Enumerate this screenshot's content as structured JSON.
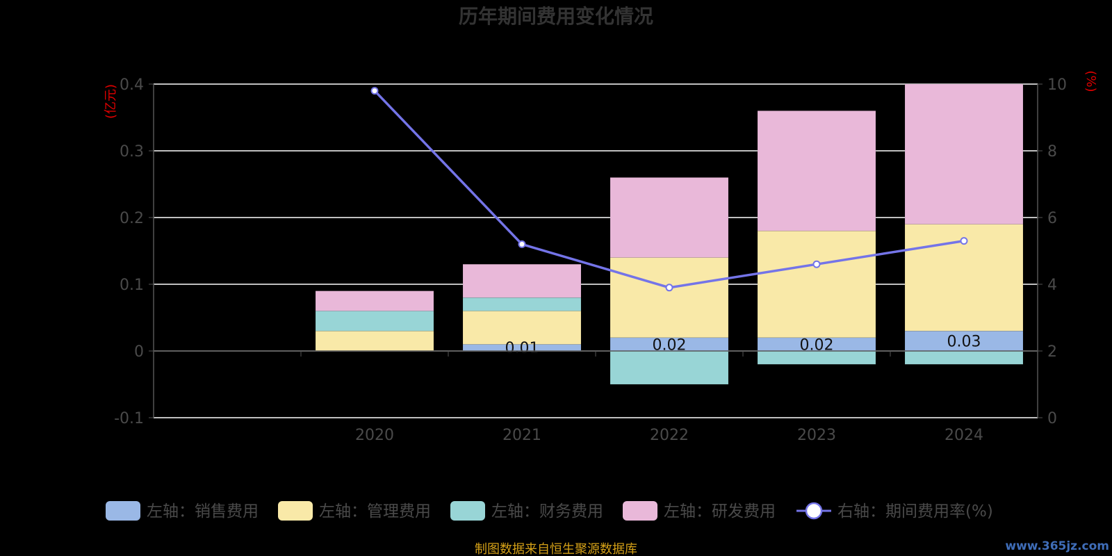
{
  "chart_data": {
    "type": "bar",
    "title": "历年期间费用变化情况",
    "categories": [
      "2020",
      "2021",
      "2022",
      "2023",
      "2024"
    ],
    "left_axis": {
      "unit": "(亿元)",
      "ylim": [
        -0.1,
        0.4
      ],
      "ticks": [
        "-0.1",
        "0",
        "0.1",
        "0.2",
        "0.3",
        "0.4"
      ]
    },
    "right_axis": {
      "unit": "(%)",
      "ylim": [
        0,
        10
      ],
      "ticks": [
        "0",
        "2",
        "4",
        "6",
        "8",
        "10"
      ]
    },
    "series": [
      {
        "name": "左轴：销售费用",
        "kind": "bar",
        "color": "#9ab8e6",
        "values": [
          0.0,
          0.01,
          0.02,
          0.02,
          0.03
        ],
        "labels": [
          "",
          "0.01",
          "0.02",
          "0.02",
          "0.03"
        ]
      },
      {
        "name": "左轴：管理费用",
        "kind": "bar",
        "color": "#f9e9a8",
        "values": [
          0.03,
          0.05,
          0.12,
          0.16,
          0.16
        ]
      },
      {
        "name": "左轴：财务费用",
        "kind": "bar",
        "color": "#98d5d6",
        "values": [
          0.03,
          0.02,
          -0.05,
          -0.02,
          -0.02
        ]
      },
      {
        "name": "左轴：研发费用",
        "kind": "bar",
        "color": "#e9b8d9",
        "values": [
          0.03,
          0.05,
          0.12,
          0.18,
          0.21
        ]
      },
      {
        "name": "右轴：期间费用率(%)",
        "kind": "line",
        "color": "#7474e8",
        "values": [
          9.8,
          5.2,
          3.9,
          4.6,
          5.3
        ]
      }
    ],
    "grid": true,
    "legend_position": "bottom"
  },
  "footer": {
    "source": "制图数据来自恒生聚源数据库",
    "watermark": "www.365jz.com"
  }
}
